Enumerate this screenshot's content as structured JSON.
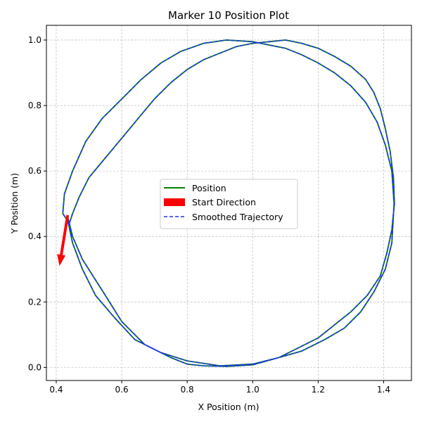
{
  "chart_data": {
    "type": "line",
    "title": "Marker 10 Position Plot",
    "xlabel": "X Position (m)",
    "ylabel": "Y Position (m)",
    "xlim": [
      0.37,
      1.485
    ],
    "ylim": [
      -0.04,
      1.045
    ],
    "xticks": [
      "0.4",
      "0.6",
      "0.8",
      "1.0",
      "1.2",
      "1.4"
    ],
    "xtick_values": [
      0.4,
      0.6,
      0.8,
      1.0,
      1.2,
      1.4
    ],
    "yticks": [
      "0.0",
      "0.2",
      "0.4",
      "0.6",
      "0.8",
      "1.0"
    ],
    "ytick_values": [
      0.0,
      0.2,
      0.4,
      0.6,
      0.8,
      1.0
    ],
    "grid": true,
    "legend_placement": "center",
    "series": [
      {
        "name": "Position",
        "color": "#008000",
        "style": "solid",
        "x": [
          0.435,
          0.45,
          0.48,
          0.55,
          0.6,
          0.67,
          0.75,
          0.8,
          0.85,
          0.92,
          1.0,
          1.08,
          1.14,
          1.2,
          1.25,
          1.3,
          1.35,
          1.39,
          1.41,
          1.425,
          1.433,
          1.43,
          1.42,
          1.405,
          1.39,
          1.37,
          1.345,
          1.3,
          1.25,
          1.2,
          1.15,
          1.1,
          1.05,
          1.0,
          0.95,
          0.9,
          0.85,
          0.8,
          0.75,
          0.7,
          0.65,
          0.6,
          0.55,
          0.5,
          0.47,
          0.45,
          0.44,
          0.435,
          0.45,
          0.48,
          0.52,
          0.58,
          0.64,
          0.72,
          0.8,
          0.9,
          1.0,
          1.08,
          1.15,
          1.22,
          1.28,
          1.33,
          1.37,
          1.405,
          1.425,
          1.432,
          1.425,
          1.405,
          1.38,
          1.345,
          1.3,
          1.25,
          1.2,
          1.15,
          1.1,
          1.0,
          0.92,
          0.85,
          0.78,
          0.72,
          0.66,
          0.6,
          0.54,
          0.49,
          0.45,
          0.425,
          0.42,
          0.43
        ],
        "y": [
          0.46,
          0.4,
          0.33,
          0.22,
          0.14,
          0.07,
          0.03,
          0.01,
          0.005,
          0.003,
          0.008,
          0.03,
          0.06,
          0.09,
          0.13,
          0.17,
          0.22,
          0.28,
          0.35,
          0.42,
          0.5,
          0.58,
          0.66,
          0.73,
          0.79,
          0.84,
          0.88,
          0.92,
          0.95,
          0.975,
          0.99,
          1.0,
          0.995,
          0.99,
          0.98,
          0.96,
          0.94,
          0.91,
          0.87,
          0.82,
          0.76,
          0.7,
          0.64,
          0.58,
          0.52,
          0.47,
          0.44,
          0.45,
          0.38,
          0.3,
          0.22,
          0.15,
          0.085,
          0.045,
          0.02,
          0.005,
          0.01,
          0.03,
          0.05,
          0.085,
          0.12,
          0.17,
          0.23,
          0.3,
          0.38,
          0.5,
          0.6,
          0.68,
          0.75,
          0.81,
          0.86,
          0.9,
          0.93,
          0.955,
          0.975,
          0.995,
          1.0,
          0.99,
          0.965,
          0.93,
          0.88,
          0.82,
          0.76,
          0.69,
          0.6,
          0.53,
          0.47,
          0.455
        ]
      },
      {
        "name": "Smoothed Trajectory",
        "color": "#1f2fff",
        "style": "dashed",
        "x": [
          0.435,
          0.45,
          0.48,
          0.55,
          0.6,
          0.67,
          0.75,
          0.8,
          0.85,
          0.92,
          1.0,
          1.08,
          1.14,
          1.2,
          1.25,
          1.3,
          1.35,
          1.39,
          1.41,
          1.425,
          1.433,
          1.43,
          1.42,
          1.405,
          1.39,
          1.37,
          1.345,
          1.3,
          1.25,
          1.2,
          1.15,
          1.1,
          1.05,
          1.0,
          0.95,
          0.9,
          0.85,
          0.8,
          0.75,
          0.7,
          0.65,
          0.6,
          0.55,
          0.5,
          0.47,
          0.45,
          0.44,
          0.435,
          0.45,
          0.48,
          0.52,
          0.58,
          0.64,
          0.72,
          0.8,
          0.9,
          1.0,
          1.08,
          1.15,
          1.22,
          1.28,
          1.33,
          1.37,
          1.405,
          1.425,
          1.432,
          1.425,
          1.405,
          1.38,
          1.345,
          1.3,
          1.25,
          1.2,
          1.15,
          1.1,
          1.0,
          0.92,
          0.85,
          0.78,
          0.72,
          0.66,
          0.6,
          0.54,
          0.49,
          0.45,
          0.425,
          0.42,
          0.43
        ],
        "y": [
          0.46,
          0.4,
          0.33,
          0.22,
          0.14,
          0.07,
          0.03,
          0.01,
          0.005,
          0.003,
          0.008,
          0.03,
          0.06,
          0.09,
          0.13,
          0.17,
          0.22,
          0.28,
          0.35,
          0.42,
          0.5,
          0.58,
          0.66,
          0.73,
          0.79,
          0.84,
          0.88,
          0.92,
          0.95,
          0.975,
          0.99,
          1.0,
          0.995,
          0.99,
          0.98,
          0.96,
          0.94,
          0.91,
          0.87,
          0.82,
          0.76,
          0.7,
          0.64,
          0.58,
          0.52,
          0.47,
          0.44,
          0.45,
          0.38,
          0.3,
          0.22,
          0.15,
          0.085,
          0.045,
          0.02,
          0.005,
          0.01,
          0.03,
          0.05,
          0.085,
          0.12,
          0.17,
          0.23,
          0.3,
          0.38,
          0.5,
          0.6,
          0.68,
          0.75,
          0.81,
          0.86,
          0.9,
          0.93,
          0.955,
          0.975,
          0.995,
          1.0,
          0.99,
          0.965,
          0.93,
          0.88,
          0.82,
          0.76,
          0.69,
          0.6,
          0.53,
          0.47,
          0.455
        ]
      }
    ],
    "arrow": {
      "name": "Start Direction",
      "color": "#ff0000",
      "from": [
        0.435,
        0.465
      ],
      "to": [
        0.41,
        0.31
      ]
    },
    "legend": [
      "Position",
      "Start Direction",
      "Smoothed Trajectory"
    ]
  }
}
